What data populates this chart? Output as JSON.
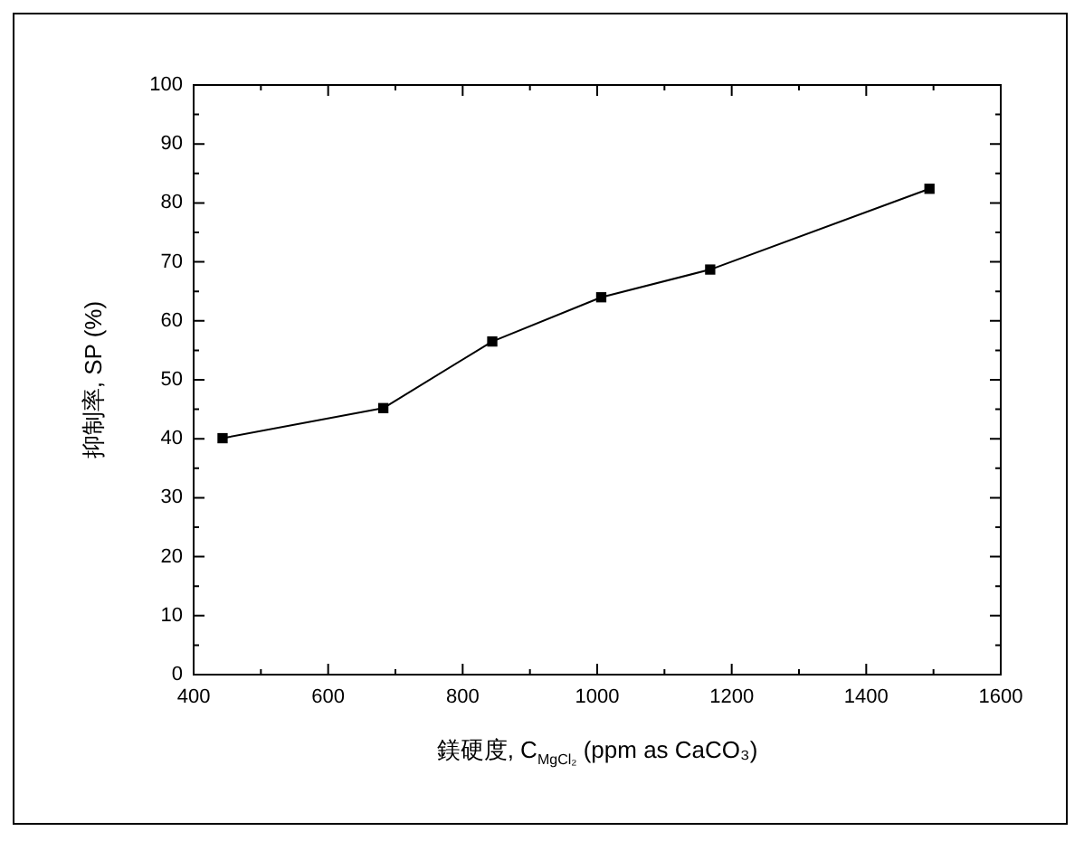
{
  "chart_data": {
    "type": "line",
    "xlabel": "鎂硬度, C$_{MgCl₂}$ (ppm as CaCO₃)",
    "ylabel": "抑制率, SP (%)",
    "x": [
      443,
      682,
      844,
      1006,
      1168,
      1494
    ],
    "series": [
      {
        "color": "#000000",
        "values": [
          40.1,
          45.2,
          56.5,
          64.0,
          68.7,
          82.4
        ]
      }
    ],
    "xlim": [
      400,
      1600
    ],
    "xticks": [
      400,
      {
        "value": 500,
        "label": null
      },
      600,
      {
        "value": 700,
        "label": null
      },
      800,
      {
        "value": 900,
        "label": null
      },
      1000,
      {
        "value": 1100,
        "label": null
      },
      1200,
      {
        "value": 1300,
        "label": null
      },
      1400,
      {
        "value": 1500,
        "label": null
      },
      1600
    ],
    "ylim": [
      0,
      100
    ],
    "yticks": [
      0,
      {
        "value": 5,
        "label": null
      },
      10,
      {
        "value": 15,
        "label": null
      },
      20,
      {
        "value": 25,
        "label": null
      },
      30,
      {
        "value": 35,
        "label": null
      },
      40,
      {
        "value": 45,
        "label": null
      },
      50,
      {
        "value": 55,
        "label": null
      },
      60,
      {
        "value": 65,
        "label": null
      },
      70,
      {
        "value": 75,
        "label": null
      },
      80,
      {
        "value": 85,
        "label": null
      },
      90,
      {
        "value": 95,
        "label": null
      },
      100
    ],
    "grid": false,
    "legend": false,
    "marker": "square",
    "line_style": "solid"
  }
}
